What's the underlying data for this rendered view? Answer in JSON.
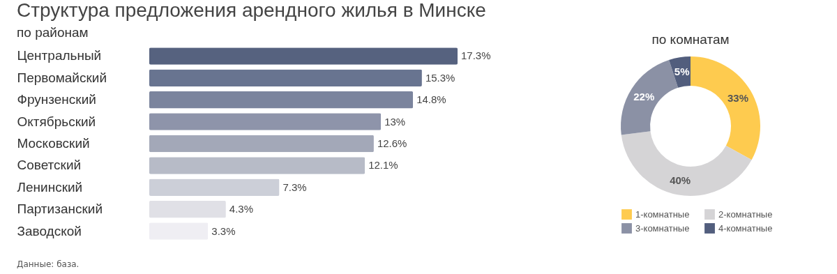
{
  "chart_data": [
    {
      "type": "bar",
      "orientation": "horizontal",
      "title": "Структура предложения арендного жилья в Минске",
      "subtitle": "по районам",
      "categories": [
        "Центральный",
        "Первомайский",
        "Фрунзенский",
        "Октябрьский",
        "Московский",
        "Советский",
        "Ленинский",
        "Партизанский",
        "Заводской"
      ],
      "values": [
        17.3,
        15.3,
        14.8,
        13,
        12.6,
        12.1,
        7.3,
        4.3,
        3.3
      ],
      "value_labels": [
        "17.3%",
        "15.3%",
        "14.8%",
        "13%",
        "12.6%",
        "12.1%",
        "7.3%",
        "4.3%",
        "3.3%"
      ],
      "colors": [
        "#56627f",
        "#687490",
        "#7b849d",
        "#8e94aa",
        "#a3a8b8",
        "#b7bbc7",
        "#cccfd8",
        "#e0e0e6",
        "#efeef3"
      ],
      "tick_labels": "y",
      "annotations": [
        "Данные: база."
      ]
    },
    {
      "type": "donut",
      "title": "по комнатам",
      "categories": [
        "1-комнатные",
        "2-комнатные",
        "3-комнатные",
        "4-комнатные"
      ],
      "values": [
        33,
        40,
        22,
        5
      ],
      "value_labels": [
        "33%",
        "40%",
        "22%",
        "5%"
      ],
      "colors": [
        "#fecb4f",
        "#d5d4d6",
        "#8b91a5",
        "#525e7d"
      ],
      "legend": "bottom"
    }
  ]
}
